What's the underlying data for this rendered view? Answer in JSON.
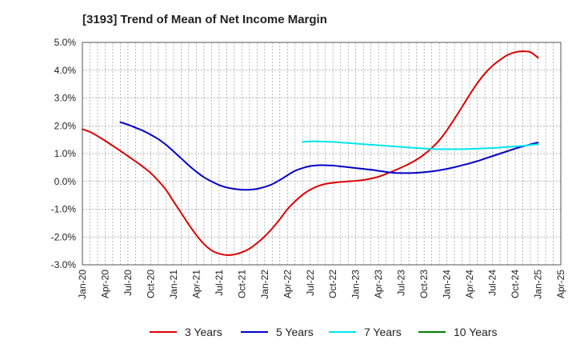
{
  "chart_data": {
    "type": "line",
    "title": "[3193]  Trend of Mean of Net Income Margin",
    "x_ticks": [
      "Jan-20",
      "Apr-20",
      "Jul-20",
      "Oct-20",
      "Jan-21",
      "Apr-21",
      "Jul-21",
      "Oct-21",
      "Jan-22",
      "Apr-22",
      "Jul-22",
      "Oct-22",
      "Jan-23",
      "Apr-23",
      "Jul-23",
      "Oct-23",
      "Jan-24",
      "Apr-24",
      "Jul-24",
      "Oct-24",
      "Jan-25",
      "Apr-25"
    ],
    "y_ticks": [
      "5.0%",
      "4.0%",
      "3.0%",
      "2.0%",
      "1.0%",
      "0.0%",
      "-1.0%",
      "-2.0%",
      "-3.0%"
    ],
    "ylim": [
      -3.0,
      5.0
    ],
    "grid": true,
    "legend_position": "bottom",
    "series": [
      {
        "name": "3 Years",
        "color": "#dd0000",
        "x": [
          "Jan-20",
          "Feb-20",
          "Mar-20",
          "Apr-20",
          "May-20",
          "Jun-20",
          "Jul-20",
          "Aug-20",
          "Sep-20",
          "Oct-20",
          "Nov-20",
          "Dec-20",
          "Jan-21",
          "Feb-21",
          "Mar-21",
          "Apr-21",
          "May-21",
          "Jun-21",
          "Jul-21",
          "Aug-21",
          "Sep-21",
          "Oct-21",
          "Nov-21",
          "Dec-21",
          "Jan-22",
          "Feb-22",
          "Mar-22",
          "Apr-22",
          "May-22",
          "Jun-22",
          "Jul-22",
          "Aug-22",
          "Sep-22",
          "Oct-22",
          "Nov-22",
          "Dec-22",
          "Jan-23",
          "Feb-23",
          "Mar-23",
          "Apr-23",
          "May-23",
          "Jun-23",
          "Jul-23",
          "Aug-23",
          "Sep-23",
          "Oct-23",
          "Nov-23",
          "Dec-23",
          "Jan-24",
          "Feb-24",
          "Mar-24",
          "Apr-24",
          "May-24",
          "Jun-24",
          "Jul-24",
          "Aug-24",
          "Sep-24",
          "Oct-24",
          "Nov-24",
          "Dec-24",
          "Jan-25"
        ],
        "values": [
          1.88,
          1.78,
          1.63,
          1.46,
          1.28,
          1.1,
          0.91,
          0.72,
          0.52,
          0.3,
          0.02,
          -0.3,
          -0.72,
          -1.13,
          -1.55,
          -1.93,
          -2.25,
          -2.48,
          -2.6,
          -2.65,
          -2.63,
          -2.55,
          -2.42,
          -2.22,
          -1.98,
          -1.69,
          -1.36,
          -1.0,
          -0.72,
          -0.48,
          -0.3,
          -0.17,
          -0.09,
          -0.05,
          -0.02,
          0.0,
          0.02,
          0.05,
          0.1,
          0.17,
          0.27,
          0.38,
          0.5,
          0.63,
          0.78,
          0.97,
          1.2,
          1.48,
          1.84,
          2.25,
          2.68,
          3.12,
          3.53,
          3.88,
          4.16,
          4.37,
          4.55,
          4.65,
          4.68,
          4.65,
          4.45
        ]
      },
      {
        "name": "5 Years",
        "color": "#0000cc",
        "x": [
          "Jun-20",
          "Jul-20",
          "Aug-20",
          "Sep-20",
          "Oct-20",
          "Nov-20",
          "Dec-20",
          "Jan-21",
          "Feb-21",
          "Mar-21",
          "Apr-21",
          "May-21",
          "Jun-21",
          "Jul-21",
          "Aug-21",
          "Sep-21",
          "Oct-21",
          "Nov-21",
          "Dec-21",
          "Jan-22",
          "Feb-22",
          "Mar-22",
          "Apr-22",
          "May-22",
          "Jun-22",
          "Jul-22",
          "Aug-22",
          "Sep-22",
          "Oct-22",
          "Nov-22",
          "Dec-22",
          "Jan-23",
          "Feb-23",
          "Mar-23",
          "Apr-23",
          "May-23",
          "Jun-23",
          "Jul-23",
          "Aug-23",
          "Sep-23",
          "Oct-23",
          "Nov-23",
          "Dec-23",
          "Jan-24",
          "Feb-24",
          "Mar-24",
          "Apr-24",
          "May-24",
          "Jun-24",
          "Jul-24",
          "Aug-24",
          "Sep-24",
          "Oct-24",
          "Nov-24",
          "Dec-24",
          "Jan-25"
        ],
        "values": [
          2.13,
          2.04,
          1.93,
          1.82,
          1.68,
          1.52,
          1.32,
          1.08,
          0.83,
          0.58,
          0.35,
          0.15,
          0.0,
          -0.13,
          -0.22,
          -0.27,
          -0.3,
          -0.3,
          -0.27,
          -0.2,
          -0.1,
          0.05,
          0.22,
          0.38,
          0.48,
          0.55,
          0.58,
          0.58,
          0.57,
          0.54,
          0.51,
          0.48,
          0.45,
          0.42,
          0.38,
          0.34,
          0.31,
          0.3,
          0.3,
          0.31,
          0.33,
          0.36,
          0.4,
          0.45,
          0.51,
          0.58,
          0.65,
          0.73,
          0.82,
          0.91,
          1.0,
          1.09,
          1.18,
          1.26,
          1.33,
          1.4
        ]
      },
      {
        "name": "7 Years",
        "color": "#00e5ee",
        "x": [
          "Jun-22",
          "Jul-22",
          "Aug-22",
          "Sep-22",
          "Oct-22",
          "Nov-22",
          "Dec-22",
          "Jan-23",
          "Feb-23",
          "Mar-23",
          "Apr-23",
          "May-23",
          "Jun-23",
          "Jul-23",
          "Aug-23",
          "Sep-23",
          "Oct-23",
          "Nov-23",
          "Dec-23",
          "Jan-24",
          "Feb-24",
          "Mar-24",
          "Apr-24",
          "May-24",
          "Jun-24",
          "Jul-24",
          "Aug-24",
          "Sep-24",
          "Oct-24",
          "Nov-24",
          "Dec-24",
          "Jan-25"
        ],
        "values": [
          1.42,
          1.44,
          1.44,
          1.43,
          1.42,
          1.4,
          1.38,
          1.36,
          1.34,
          1.32,
          1.3,
          1.28,
          1.26,
          1.24,
          1.22,
          1.2,
          1.18,
          1.17,
          1.16,
          1.16,
          1.16,
          1.16,
          1.17,
          1.18,
          1.19,
          1.2,
          1.22,
          1.24,
          1.26,
          1.28,
          1.31,
          1.34
        ]
      },
      {
        "name": "10 Years",
        "color": "#008000",
        "x": [],
        "values": []
      }
    ]
  }
}
